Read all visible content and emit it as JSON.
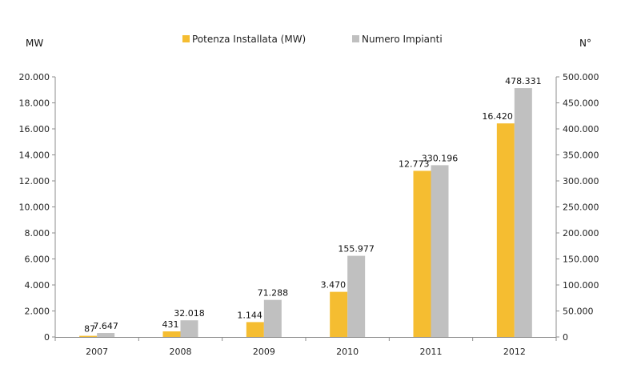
{
  "chart_data": {
    "type": "bar",
    "categories": [
      "2007",
      "2008",
      "2009",
      "2010",
      "2011",
      "2012"
    ],
    "series": [
      {
        "name": "Potenza Installata (MW)",
        "axis": "left",
        "color": "#f5bd31",
        "values": [
          87,
          431,
          1144,
          3470,
          12773,
          16420
        ],
        "labels": [
          "87",
          "431",
          "1.144",
          "3.470",
          "12.773",
          "16.420"
        ]
      },
      {
        "name": "Numero Impianti",
        "axis": "right",
        "color": "#c0c0c0",
        "values": [
          7647,
          32018,
          71288,
          155977,
          330196,
          478331
        ],
        "labels": [
          "7.647",
          "32.018",
          "71.288",
          "155.977",
          "330.196",
          "478.331"
        ]
      }
    ],
    "ylabel_left": "MW",
    "ylabel_right": "N°",
    "ylim_left": [
      0,
      20000
    ],
    "ylim_right": [
      0,
      500000
    ],
    "yticks_left": [
      "0",
      "2.000",
      "4.000",
      "6.000",
      "8.000",
      "10.000",
      "12.000",
      "14.000",
      "16.000",
      "18.000",
      "20.000"
    ],
    "yticks_right": [
      "0",
      "50.000",
      "100.000",
      "150.000",
      "200.000",
      "250.000",
      "300.000",
      "350.000",
      "400.000",
      "450.000",
      "500.000"
    ],
    "grid": false,
    "legend": "top-center"
  }
}
